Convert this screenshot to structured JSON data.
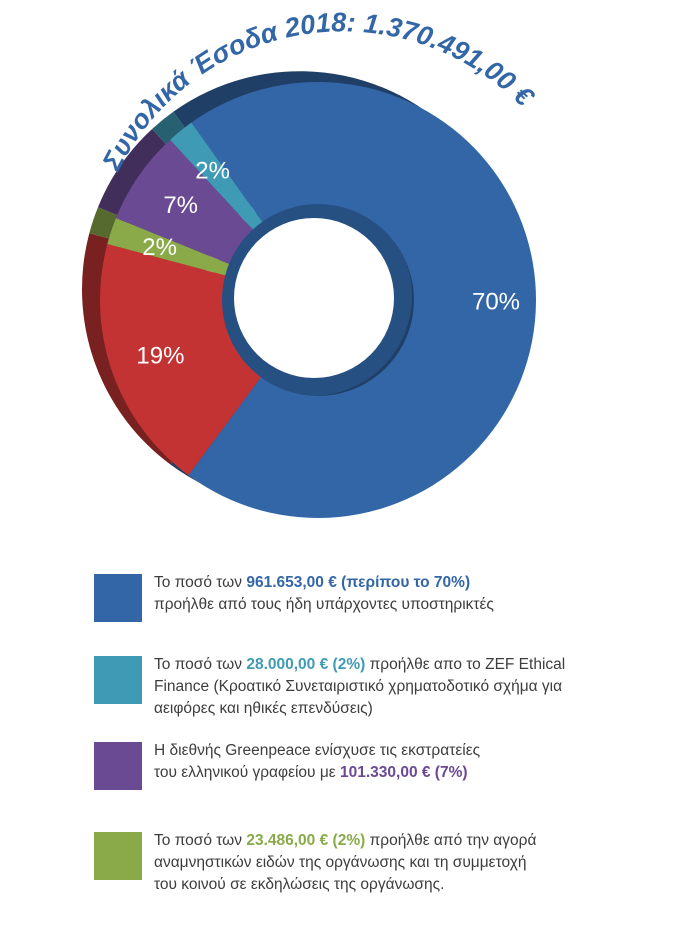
{
  "title_text": "Συνολικά Έσοδα 2018:  1.370.491,00 €",
  "colors": {
    "blue": "#3366a6",
    "teal": "#3f9bb5",
    "purple": "#6a4a93",
    "green": "#8aaa4a",
    "red": "#c33333",
    "text": "#3d3d3d"
  },
  "chart_data": {
    "type": "pie",
    "title": "Συνολικά Έσοδα 2018:  1.370.491,00 €",
    "slices": [
      {
        "label": "70%",
        "value": 70,
        "color": "#3366a6"
      },
      {
        "label": "19%",
        "value": 19,
        "color": "#c33333"
      },
      {
        "label": "2%",
        "value": 2,
        "color": "#8aaa4a"
      },
      {
        "label": "7%",
        "value": 7,
        "color": "#6a4a93"
      },
      {
        "label": "2%",
        "value": 2,
        "color": "#3f9bb5"
      }
    ]
  },
  "legend": [
    {
      "color": "#3366a6",
      "line1": {
        "pre": "Το ποσό των ",
        "bold": "961.653,00 €  (περίπου το 70%)",
        "post": ""
      },
      "line2": {
        "pre": "προήλθε από τους ήδη υπάρχοντες υποστηρικτές",
        "bold": "",
        "post": ""
      },
      "line3": {
        "pre": "",
        "bold": "",
        "post": ""
      }
    },
    {
      "color": "#3f9bb5",
      "line1": {
        "pre": "Το ποσό των ",
        "bold": "28.000,00 € (2%)",
        "post": " προήλθε απο το ZEF Ethical"
      },
      "line2": {
        "pre": "Finance (Κροατικό Συνεταιριστικό χρηματοδοτικό σχήμα για",
        "bold": "",
        "post": ""
      },
      "line3": {
        "pre": "αειφόρες και ηθικές επενδύσεις)",
        "bold": "",
        "post": ""
      }
    },
    {
      "color": "#6a4a93",
      "line1": {
        "pre": "Η διεθνής Greenpeace ενίσχυσε τις εκστρατείες",
        "bold": "",
        "post": ""
      },
      "line2": {
        "pre": "του ελληνικού γραφείου με ",
        "bold": "101.330,00 € (7%)",
        "post": ""
      },
      "line3": {
        "pre": "",
        "bold": "",
        "post": ""
      }
    },
    {
      "color": "#8aaa4a",
      "line1": {
        "pre": "Το ποσό των ",
        "bold": "23.486,00 € (2%)",
        "post": " προήλθε από την αγορά"
      },
      "line2": {
        "pre": "αναμνηστικών ειδών της οργάνωσης και τη συμμετοχή",
        "bold": "",
        "post": ""
      },
      "line3": {
        "pre": "του κοινού σε εκδηλώσεις της οργάνωσης.",
        "bold": "",
        "post": ""
      }
    }
  ]
}
